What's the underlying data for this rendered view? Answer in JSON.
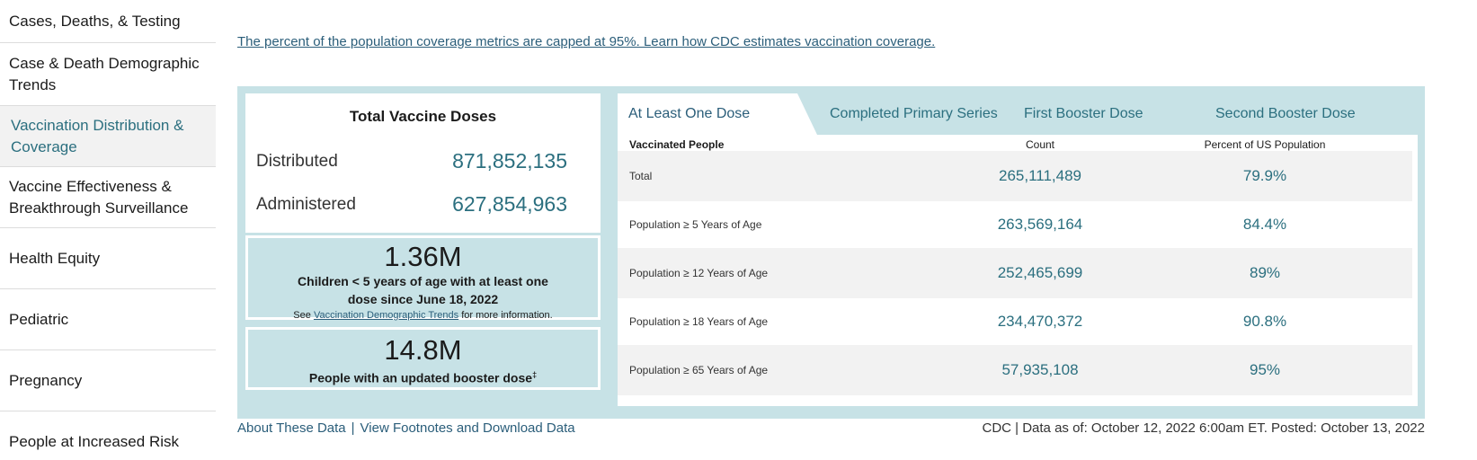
{
  "sidebar": {
    "items": [
      {
        "label": "Cases, Deaths, & Testing"
      },
      {
        "label": "Case & Death Demographic Trends"
      },
      {
        "label": "Vaccination Distribution & Coverage"
      },
      {
        "label": "Vaccine Effectiveness & Breakthrough Surveillance"
      },
      {
        "label": "Health Equity"
      },
      {
        "label": "Pediatric"
      },
      {
        "label": "Pregnancy"
      },
      {
        "label": "People at Increased Risk"
      }
    ]
  },
  "note_link": "The percent of the population coverage metrics are capped at 95%. Learn how CDC estimates vaccination coverage.",
  "doses": {
    "title": "Total Vaccine Doses",
    "distributed_label": "Distributed",
    "distributed_value": "871,852,135",
    "administered_label": "Administered",
    "administered_value": "627,854,963"
  },
  "children_stat": {
    "value": "1.36M",
    "desc": "Children < 5 years of age with at least one dose since June 18, 2022",
    "see_prefix": "See",
    "see_link": "Vaccination Demographic Trends",
    "see_suffix": "for more information."
  },
  "booster_stat": {
    "value": "14.8M",
    "desc": "People with an updated booster dose",
    "footnote_mark": "‡"
  },
  "tabs": [
    {
      "label": "At Least One Dose",
      "active": true
    },
    {
      "label": "Completed Primary Series",
      "active": false
    },
    {
      "label": "First Booster Dose",
      "active": false
    },
    {
      "label": "Second Booster Dose",
      "active": false
    }
  ],
  "table": {
    "headers": [
      "Vaccinated People",
      "Count",
      "Percent of US Population"
    ],
    "rows": [
      {
        "label": "Total",
        "count": "265,111,489",
        "pct": "79.9%"
      },
      {
        "label": "Population ≥ 5 Years of Age",
        "count": "263,569,164",
        "pct": "84.4%"
      },
      {
        "label": "Population ≥ 12 Years of Age",
        "count": "252,465,699",
        "pct": "89%"
      },
      {
        "label": "Population ≥ 18 Years of Age",
        "count": "234,470,372",
        "pct": "90.8%"
      },
      {
        "label": "Population ≥ 65 Years of Age",
        "count": "57,935,108",
        "pct": "95%"
      }
    ]
  },
  "footer": {
    "about_link": "About These Data",
    "separator": "|",
    "footnotes_link": "View Footnotes and Download Data",
    "status": "CDC | Data as of: October 12, 2022 6:00am ET. Posted: October 13, 2022"
  }
}
